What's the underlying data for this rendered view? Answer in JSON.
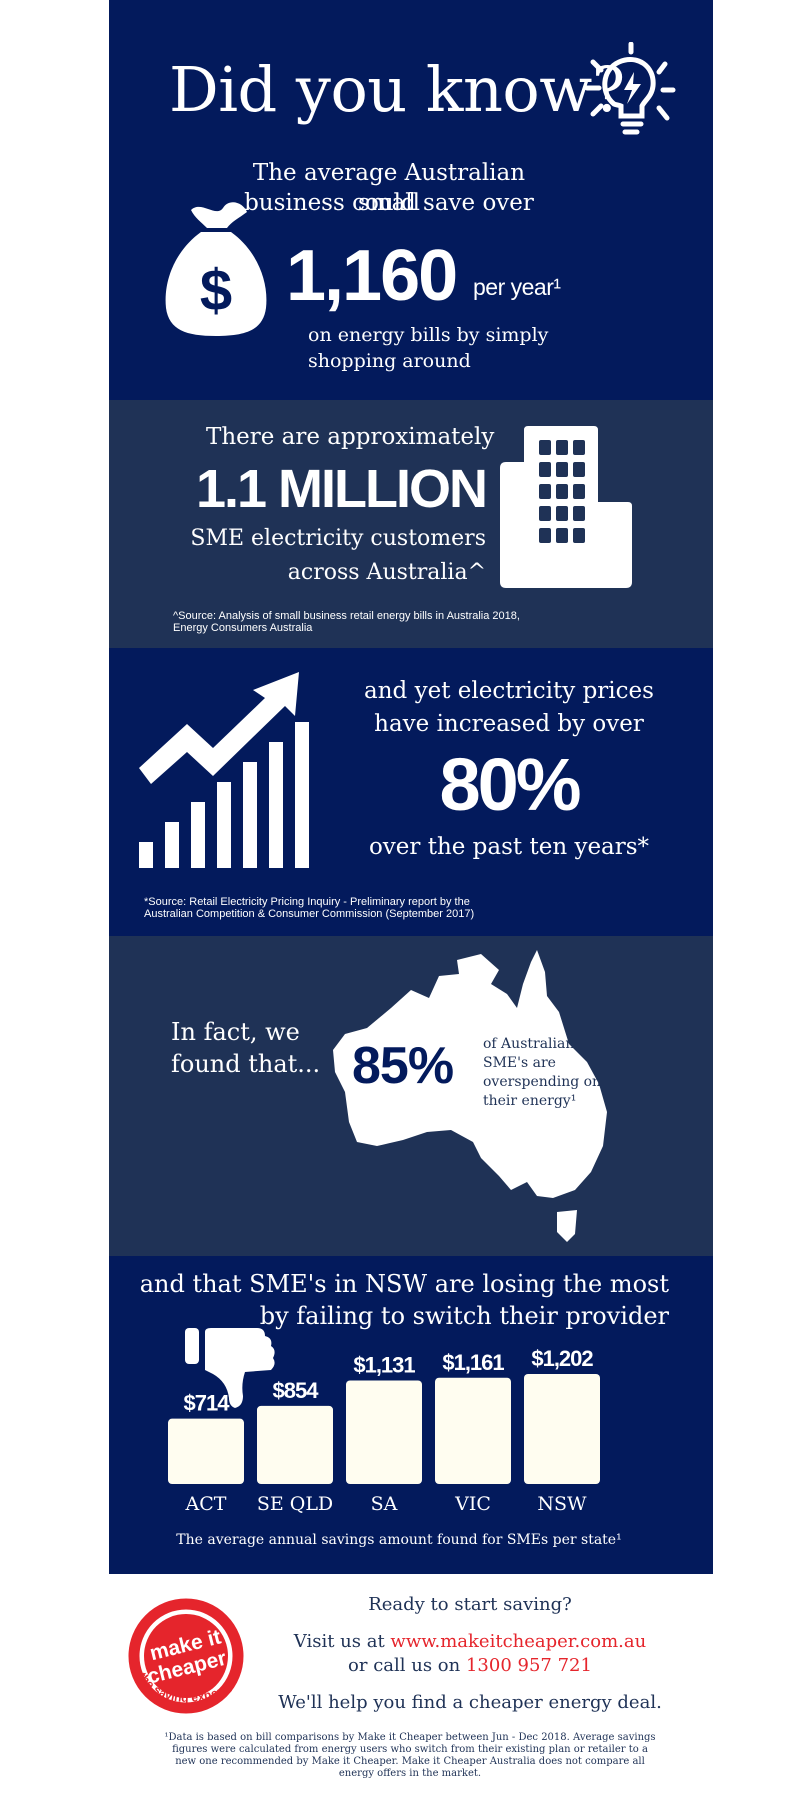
{
  "s1": {
    "title": "Did you know?",
    "intro_line1": "The average Australian small",
    "intro_line2": "business could  save over",
    "amount": "1,160",
    "per_year": "per year¹",
    "outro_line1": "on energy bills by simply",
    "outro_line2": "shopping around"
  },
  "s2": {
    "lead": "There are approximately",
    "big": "1.1 MILLION",
    "line1": "SME electricity customers",
    "line2": "across Australia^",
    "source_line1": "^Source: Analysis of small business retail energy bills in Australia 2018,",
    "source_line2": "Energy Consumers Australia"
  },
  "s3": {
    "line1": "and yet electricity prices",
    "line2": "have increased by over",
    "big": "80%",
    "line3": "over the past ten years*",
    "source_line1": "*Source: Retail Electricity Pricing Inquiry - Preliminary report by the",
    "source_line2": "Australian Competition & Consumer Commission (September 2017)"
  },
  "s4": {
    "lead1": "In fact, we",
    "lead2": "found that...",
    "big": "85%",
    "desc1": "of Australian",
    "desc2": "SME's are",
    "desc3": "overspending on",
    "desc4": "their energy¹"
  },
  "s5": {
    "line1": "and that SME's in NSW are losing the most",
    "line2": "by failing to switch their provider",
    "caption": "The average annual savings amount found for SMEs per state¹"
  },
  "chart_data": {
    "type": "bar",
    "categories": [
      "ACT",
      "SE QLD",
      "SA",
      "VIC",
      "NSW"
    ],
    "values": [
      714,
      854,
      1131,
      1161,
      1202
    ],
    "labels": [
      "$714",
      "$854",
      "$1,131",
      "$1,161",
      "$1,202"
    ],
    "bar_color": "#fffdf0"
  },
  "footer": {
    "logo_line1": "make it",
    "logo_line2": "cheaper",
    "logo_tagline": "the saving experts",
    "ready": "Ready to start saving?",
    "visit_prefix": "Visit us at ",
    "url": "www.makeitcheaper.com.au",
    "call_prefix": "or call us on ",
    "phone": "1300 957 721",
    "help": "We'll help you find a cheaper energy deal.",
    "disclaimer1": "¹Data is based on bill comparisons by Make it Cheaper between Jun - Dec 2018. Average savings",
    "disclaimer2": "figures were calculated from energy users who switch from their existing plan or retailer to a",
    "disclaimer3": "new one recommended by Make it Cheaper. Make it Cheaper Australia does not compare all",
    "disclaimer4": "energy offers in the market."
  },
  "colors": {
    "navy": "#031a5c",
    "slate": "#1f3256",
    "brand_red": "#e5252c",
    "cream": "#fffdf0"
  }
}
